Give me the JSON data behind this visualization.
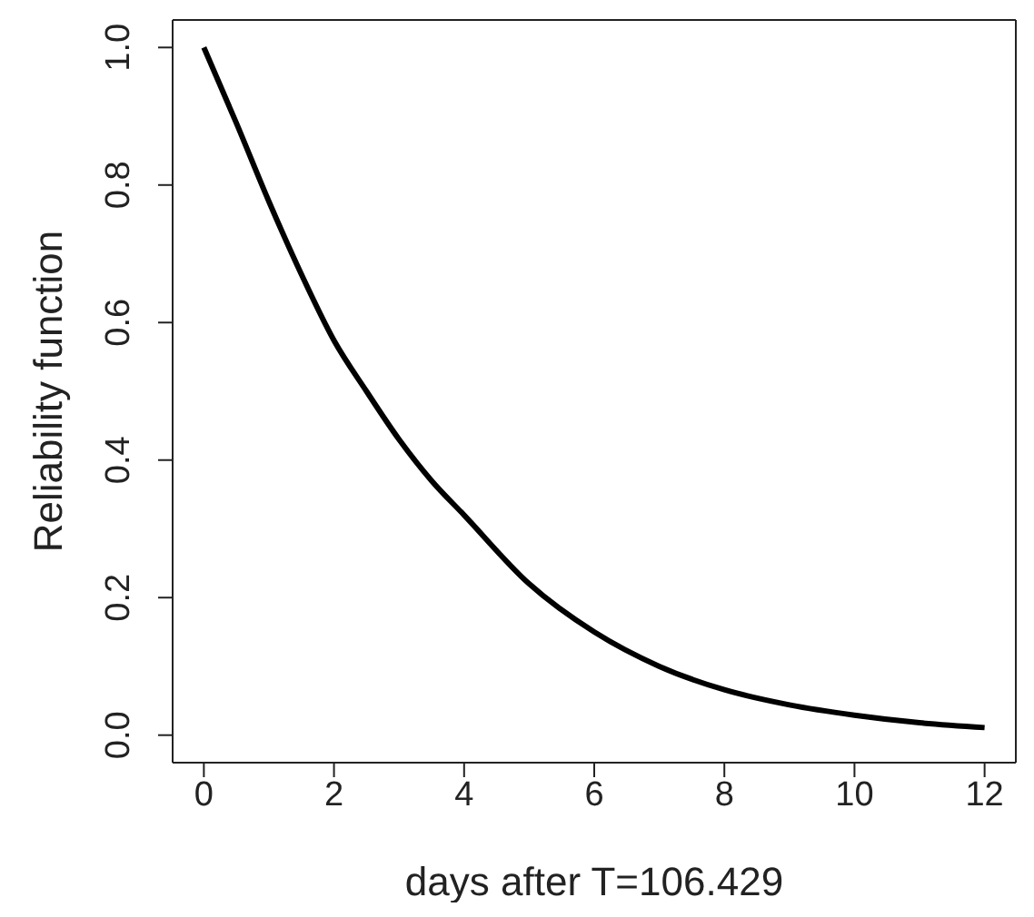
{
  "chart_data": {
    "type": "line",
    "xlabel": "days after T=106.429",
    "ylabel": "Reliability function",
    "x": [
      0,
      0.5,
      1,
      1.5,
      2,
      2.5,
      3,
      3.5,
      4,
      5,
      6,
      7,
      8,
      9,
      10,
      11,
      12
    ],
    "series": [
      {
        "color": "#000000",
        "values": [
          1.0,
          0.89,
          0.776,
          0.67,
          0.574,
          0.5,
          0.43,
          0.37,
          0.32,
          0.22,
          0.15,
          0.1,
          0.066,
          0.044,
          0.029,
          0.018,
          0.011
        ]
      }
    ],
    "xlim": [
      -0.48,
      12.48
    ],
    "ylim": [
      -0.04,
      1.04
    ],
    "xticks": [
      0,
      2,
      4,
      6,
      8,
      10,
      12
    ],
    "yticks": [
      {
        "value": 0,
        "label": "0.0"
      },
      0.2,
      0.4,
      0.6,
      0.8,
      {
        "value": 1,
        "label": "1.0"
      }
    ],
    "marker": "none",
    "line_style": "solid",
    "grid": false,
    "legend": false
  }
}
